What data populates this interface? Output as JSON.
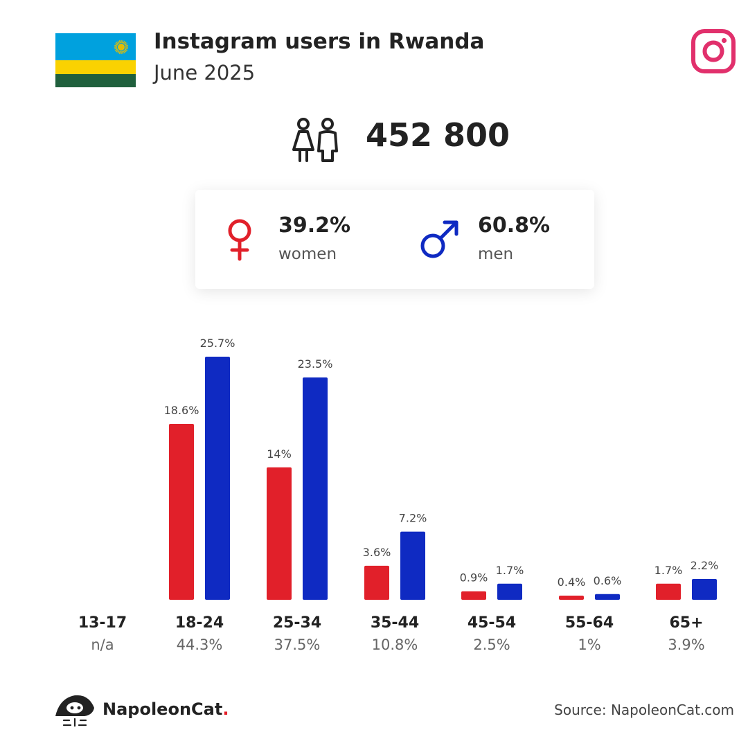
{
  "header": {
    "title": "Instagram users in Rwanda",
    "subtitle": "June 2025",
    "flag_colors": [
      "#00A1DE",
      "#FAD201",
      "#20603D"
    ],
    "flag_sun_color": "#E5BE01",
    "instagram_icon_color": "#E1306C"
  },
  "total": {
    "value": "452 800",
    "icon": "users-icon"
  },
  "gender": {
    "women": {
      "pct": "39.2%",
      "label": "women",
      "color": "#E1202A",
      "icon": "female-symbol-icon"
    },
    "men": {
      "pct": "60.8%",
      "label": "men",
      "color": "#0F2AC2",
      "icon": "male-symbol-icon"
    }
  },
  "chart_data": {
    "type": "bar",
    "categories": [
      "13-17",
      "18-24",
      "25-34",
      "35-44",
      "45-54",
      "55-64",
      "65+"
    ],
    "category_totals": [
      "n/a",
      "44.3%",
      "37.5%",
      "10.8%",
      "2.5%",
      "1%",
      "3.9%"
    ],
    "series": [
      {
        "name": "women",
        "color": "#E1202A",
        "values": [
          null,
          18.6,
          14,
          3.6,
          0.9,
          0.4,
          1.7
        ],
        "labels": [
          "",
          "18.6%",
          "14%",
          "3.6%",
          "0.9%",
          "0.4%",
          "1.7%"
        ]
      },
      {
        "name": "men",
        "color": "#0F2AC2",
        "values": [
          null,
          25.7,
          23.5,
          7.2,
          1.7,
          0.6,
          2.2
        ],
        "labels": [
          "",
          "25.7%",
          "23.5%",
          "7.2%",
          "1.7%",
          "0.6%",
          "2.2%"
        ]
      }
    ],
    "grid": false,
    "legend": "none"
  },
  "footer": {
    "brand": "NapoleonCat",
    "brand_dot": ".",
    "source": "Source: NapoleonCat.com"
  }
}
